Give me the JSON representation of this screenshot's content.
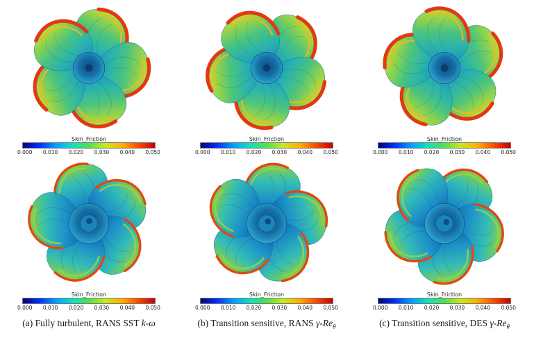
{
  "figure": {
    "colorbar": {
      "title": "Skin_Friction",
      "ticks": [
        "0.000",
        "0.010",
        "0.020",
        "0.030",
        "0.040",
        "0.050"
      ]
    },
    "captions": [
      {
        "prefix": "(a) Fully turbulent, RANS SST ",
        "math": "k-ω",
        "sub": ""
      },
      {
        "prefix": "(b) Transition sensitive, RANS ",
        "math": "γ-Re",
        "sub": "θ"
      },
      {
        "prefix": "(c) Transition sensitive, DES ",
        "math": "γ-Re",
        "sub": "θ"
      }
    ]
  }
}
